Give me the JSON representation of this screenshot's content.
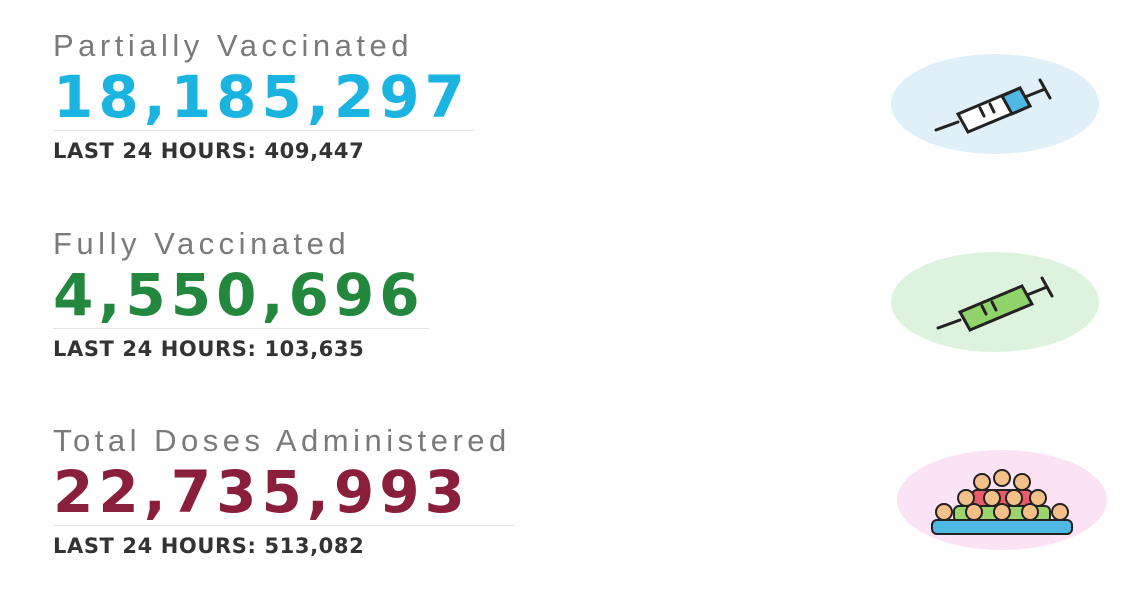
{
  "stats": [
    {
      "label": "Partially Vaccinated",
      "value": "18,185,297",
      "last_label": "LAST 24 HOURS:",
      "last_value": "409,447"
    },
    {
      "label": "Fully Vaccinated",
      "value": "4,550,696",
      "last_label": "LAST 24 HOURS:",
      "last_value": "103,635"
    },
    {
      "label": "Total Doses Administered",
      "value": "22,735,993",
      "last_label": "LAST 24 HOURS:",
      "last_value": "513,082"
    }
  ]
}
